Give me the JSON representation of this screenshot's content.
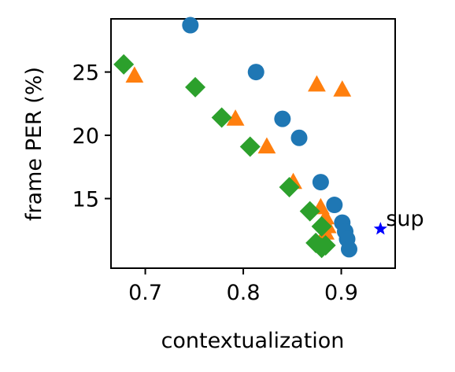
{
  "chart_data": {
    "type": "scatter",
    "xlabel": "contextualization",
    "ylabel": "frame PER (%)",
    "xlim": [
      0.665,
      0.955
    ],
    "ylim": [
      9.5,
      29.2
    ],
    "xticks": [
      {
        "value": 0.7,
        "label": "0.7"
      },
      {
        "value": 0.8,
        "label": "0.8"
      },
      {
        "value": 0.9,
        "label": "0.9"
      }
    ],
    "yticks": [
      {
        "value": 15,
        "label": "15"
      },
      {
        "value": 20,
        "label": "20"
      },
      {
        "value": 25,
        "label": "25"
      }
    ],
    "grid": false,
    "series": [
      {
        "marker": "circle",
        "color": "#1f77b4",
        "points": [
          {
            "x": 0.746,
            "y": 28.7
          },
          {
            "x": 0.813,
            "y": 25.0
          },
          {
            "x": 0.84,
            "y": 21.3
          },
          {
            "x": 0.857,
            "y": 19.8
          },
          {
            "x": 0.879,
            "y": 16.3
          },
          {
            "x": 0.893,
            "y": 14.5
          },
          {
            "x": 0.901,
            "y": 13.1
          },
          {
            "x": 0.904,
            "y": 12.4
          },
          {
            "x": 0.906,
            "y": 11.8
          },
          {
            "x": 0.908,
            "y": 11.0
          }
        ]
      },
      {
        "marker": "triangle",
        "color": "#ff7f0e",
        "points": [
          {
            "x": 0.689,
            "y": 24.7
          },
          {
            "x": 0.792,
            "y": 21.3
          },
          {
            "x": 0.824,
            "y": 19.1
          },
          {
            "x": 0.851,
            "y": 16.3
          },
          {
            "x": 0.875,
            "y": 24.0
          },
          {
            "x": 0.901,
            "y": 23.6
          },
          {
            "x": 0.879,
            "y": 14.3
          },
          {
            "x": 0.884,
            "y": 13.5
          },
          {
            "x": 0.886,
            "y": 12.8
          },
          {
            "x": 0.884,
            "y": 12.3
          },
          {
            "x": 0.882,
            "y": 11.9
          }
        ]
      },
      {
        "marker": "diamond",
        "color": "#2ca02c",
        "points": [
          {
            "x": 0.678,
            "y": 25.6
          },
          {
            "x": 0.751,
            "y": 23.8
          },
          {
            "x": 0.778,
            "y": 21.4
          },
          {
            "x": 0.807,
            "y": 19.1
          },
          {
            "x": 0.847,
            "y": 15.9
          },
          {
            "x": 0.868,
            "y": 14.0
          },
          {
            "x": 0.88,
            "y": 12.8
          },
          {
            "x": 0.874,
            "y": 11.5
          },
          {
            "x": 0.88,
            "y": 11.1
          },
          {
            "x": 0.884,
            "y": 11.3
          }
        ]
      }
    ],
    "annotations": [
      {
        "text": "sup",
        "x": 0.94,
        "y": 12.6,
        "marker": "star",
        "color": "#0000ff"
      }
    ]
  }
}
